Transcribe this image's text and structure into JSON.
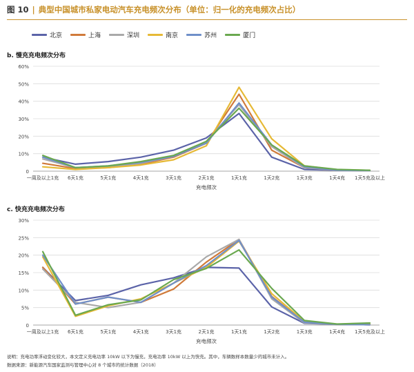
{
  "figure": {
    "label": "图 10",
    "title": "典型中国城市私家电动汽车充电频次分布（单位：归一化的充电频次占比）"
  },
  "legend": [
    {
      "name": "北京",
      "color": "#5b63a8"
    },
    {
      "name": "上海",
      "color": "#d07a3a"
    },
    {
      "name": "深圳",
      "color": "#a9a9a9"
    },
    {
      "name": "南京",
      "color": "#e6b935"
    },
    {
      "name": "苏州",
      "color": "#6f8fc9"
    },
    {
      "name": "厦门",
      "color": "#6aa84f"
    }
  ],
  "notes": {
    "line1": "说明：充电功率浮动变化较大，本文定义充电功率 10kW 以下为慢充，充电功率 10kW 以上为快充。其中，车辆数样本数量少的城市未计入。",
    "line2": "数据来源：新能源汽车国家监测与管理中心对 8 个城市的统计数据（2018）"
  },
  "chart_data": [
    {
      "type": "line",
      "title": "b. 慢充充电频次分布",
      "xlabel": "充电频次",
      "ylabel": "",
      "categories": [
        "一周及以上1充",
        "6天1充",
        "5天1充",
        "4天1充",
        "3天1充",
        "2天1充",
        "1天1充",
        "1天2充",
        "1天3充",
        "1天4充",
        "1天5充及以上"
      ],
      "ylim": [
        0,
        60
      ],
      "yticks": [
        "0",
        "10%",
        "20%",
        "30%",
        "40%",
        "50%",
        "60%"
      ],
      "series": [
        {
          "name": "北京",
          "color": "#5b63a8",
          "values": [
            8,
            4,
            5.5,
            8,
            12,
            19,
            33,
            8,
            1,
            0.5,
            0.3
          ]
        },
        {
          "name": "上海",
          "color": "#d07a3a",
          "values": [
            4.5,
            1.5,
            2,
            4,
            8,
            16,
            44,
            12,
            2,
            0.5,
            0.3
          ]
        },
        {
          "name": "深圳",
          "color": "#a9a9a9",
          "values": [
            7,
            2,
            2.5,
            4.5,
            8.5,
            17,
            38,
            14,
            2,
            0.5,
            0.3
          ]
        },
        {
          "name": "南京",
          "color": "#e6b935",
          "values": [
            2.5,
            1,
            2,
            3.5,
            6.5,
            14.5,
            48,
            18.5,
            3,
            0.8,
            0.5
          ]
        },
        {
          "name": "苏州",
          "color": "#6f8fc9",
          "values": [
            8,
            2,
            3,
            5,
            8.5,
            16,
            39,
            15,
            2.5,
            0.5,
            0.3
          ]
        },
        {
          "name": "厦门",
          "color": "#6aa84f",
          "values": [
            9,
            2,
            3,
            5.5,
            9,
            17,
            36,
            15,
            3,
            1,
            0.5
          ]
        }
      ]
    },
    {
      "type": "line",
      "title": "c. 快充充电频次分布",
      "xlabel": "充电频次",
      "ylabel": "",
      "categories": [
        "一周及以上1充",
        "6天1充",
        "5天1充",
        "4天1充",
        "3天1充",
        "2天1充",
        "1天1充",
        "1天2充",
        "1天3充",
        "1天4充",
        "1天5充及以上"
      ],
      "ylim": [
        0,
        30
      ],
      "yticks": [
        "0",
        "5%",
        "10%",
        "15%",
        "20%",
        "25%",
        "30%"
      ],
      "series": [
        {
          "name": "北京",
          "color": "#5b63a8",
          "values": [
            16.5,
            7,
            8.5,
            11.5,
            13.5,
            16.5,
            16.3,
            5.2,
            0.5,
            0.2,
            0.1
          ]
        },
        {
          "name": "上海",
          "color": "#d07a3a",
          "values": [
            16.5,
            6,
            8,
            6.5,
            10.3,
            18,
            24.5,
            8.2,
            0.8,
            0.2,
            0.1
          ]
        },
        {
          "name": "深圳",
          "color": "#a9a9a9",
          "values": [
            16,
            6.5,
            5,
            6.5,
            12,
            19.5,
            24.5,
            7.5,
            0.6,
            0.2,
            0.1
          ]
        },
        {
          "name": "南京",
          "color": "#e6b935",
          "values": [
            19.5,
            2.5,
            5.5,
            7.5,
            12,
            16.5,
            24,
            9,
            1,
            0.2,
            0.3
          ]
        },
        {
          "name": "苏州",
          "color": "#6f8fc9",
          "values": [
            20,
            6,
            8,
            6.5,
            12,
            17,
            24.2,
            8,
            0.8,
            0.2,
            0.1
          ]
        },
        {
          "name": "厦门",
          "color": "#6aa84f",
          "values": [
            21,
            2.8,
            5.8,
            7.2,
            13,
            16.2,
            21.5,
            10.5,
            1.3,
            0.3,
            0.6
          ]
        }
      ]
    }
  ]
}
